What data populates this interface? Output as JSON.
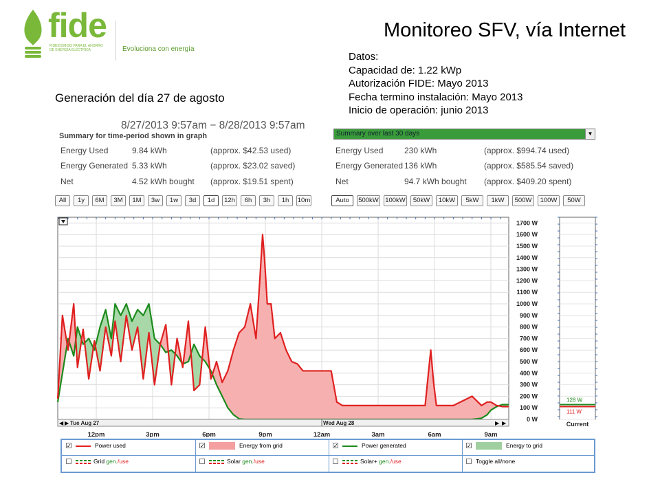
{
  "logo": {
    "word": "fide",
    "small_line1": "FIDEICOMISO PARA EL AHORRO",
    "small_line2": "DE ENERGÍA ELÉCTRICA",
    "tagline": "Evoluciona con energía"
  },
  "slide": {
    "title": "Monitoreo SFV, vía Internet",
    "caption": "Generación del día 27 de agosto",
    "datos": [
      "Datos:",
      "Capacidad de: 1.22 kWp",
      "Autorización FIDE:  Mayo 2013",
      "Fecha termino instalación: Mayo 2013",
      "Inicio de operación: junio 2013"
    ]
  },
  "screenshot": {
    "period": "8/27/2013 9:57am − 8/28/2013 9:57am",
    "summary_title": "Summary for time-period shown in graph",
    "summary_left": [
      {
        "label": "Energy Used",
        "value": "9.84 kWh",
        "approx": "(approx. $42.53 used)"
      },
      {
        "label": "Energy Generated",
        "value": "5.33 kWh",
        "approx": "(approx. $23.02 saved)"
      },
      {
        "label": "Net",
        "value": "4.52 kWh bought",
        "approx": "(approx. $19.51 spent)"
      }
    ],
    "dropdown": "Summary over last 30 days",
    "summary_right": [
      {
        "label": "Energy Used",
        "value": "230 kWh",
        "approx": "(approx. $994.74 used)"
      },
      {
        "label": "Energy Generated",
        "value": "136 kWh",
        "approx": "(approx. $585.54 saved)"
      },
      {
        "label": "Net",
        "value": "94.7 kWh bought",
        "approx": "(approx. $409.20 spent)"
      }
    ],
    "time_buttons": [
      "All",
      "1y",
      "6M",
      "3M",
      "1M",
      "3w",
      "1w",
      "3d",
      "1d",
      "12h",
      "6h",
      "3h",
      "1h",
      "10m"
    ],
    "scale_buttons": [
      "Auto",
      "500kW",
      "100kW",
      "50kW",
      "10kW",
      "5kW",
      "1kW",
      "500W",
      "100W",
      "50W"
    ],
    "selected_time": "1d",
    "selected_scale": "Auto",
    "current_label": "Current",
    "current_generated": "128 W",
    "current_used": "111 W",
    "legend": [
      {
        "label": "Power used",
        "checked": true,
        "kind": "line",
        "color": "#e02020"
      },
      {
        "label": "Energy from grid",
        "checked": true,
        "kind": "fill",
        "color": "#f4a0a0"
      },
      {
        "label": "Power generated",
        "checked": true,
        "kind": "line",
        "color": "#1c8a1c"
      },
      {
        "label": "Energy to grid",
        "checked": true,
        "kind": "fill",
        "color": "#a0d0a0"
      },
      {
        "label_a": "Grid ",
        "label_b": "gen.",
        "label_c": "/use",
        "checked": false,
        "kind": "dashed"
      },
      {
        "label_a": "Solar ",
        "label_b": "gen.",
        "label_c": "/use",
        "checked": false,
        "kind": "dashed"
      },
      {
        "label_a": "Solar+ ",
        "label_b": "gen.",
        "label_c": "/use",
        "checked": false,
        "kind": "dashed"
      },
      {
        "label": "Toggle all/none",
        "checked": false,
        "kind": "none"
      }
    ]
  },
  "colors": {
    "power_used": "#e02020",
    "power_generated": "#1c8a1c",
    "from_grid_fill": "#f7b0b0",
    "to_grid_fill": "#a8d8a8",
    "logo_green": "#7ab83a",
    "dropdown_green": "#3a9b3a",
    "legend_border": "#6a9ad0"
  },
  "chart_data": {
    "type": "line",
    "x_unit": "hour",
    "x_ticks": [
      "12pm",
      "3pm",
      "6pm",
      "9pm",
      "12am",
      "3am",
      "6am",
      "9am"
    ],
    "x_tick_hours": [
      12,
      15,
      18,
      21,
      24,
      27,
      30,
      33
    ],
    "x_range": [
      9.95,
      33.95
    ],
    "date_labels": [
      "Tue Aug 27",
      "Wed Aug 28"
    ],
    "y_ticks": [
      "0 W",
      "100 W",
      "200 W",
      "300 W",
      "400 W",
      "500 W",
      "600 W",
      "700 W",
      "800 W",
      "900 W",
      "1000 W",
      "1100 W",
      "1200 W",
      "1300 W",
      "1400 W",
      "1500 W",
      "1600 W",
      "1700 W"
    ],
    "ylim": [
      0,
      1750
    ],
    "grid": true,
    "series": [
      {
        "name": "Power used",
        "x": [
          9.95,
          10.2,
          10.5,
          10.8,
          11.0,
          11.3,
          11.6,
          11.9,
          12.2,
          12.5,
          12.8,
          13.0,
          13.3,
          13.6,
          13.9,
          14.2,
          14.5,
          14.8,
          15.1,
          15.4,
          15.7,
          16.0,
          16.3,
          16.6,
          16.9,
          17.2,
          17.5,
          17.8,
          18.1,
          18.4,
          18.7,
          19.0,
          19.3,
          19.6,
          19.9,
          20.2,
          20.5,
          20.7,
          20.85,
          20.95,
          21.1,
          21.3,
          21.5,
          21.8,
          22.1,
          22.4,
          22.7,
          23.0,
          23.3,
          23.6,
          23.9,
          24.2,
          24.5,
          24.8,
          25.1,
          25.5,
          26.0,
          26.5,
          27.0,
          27.5,
          28.0,
          28.5,
          29.0,
          29.5,
          29.8,
          29.95,
          30.1,
          30.5,
          31.0,
          31.5,
          32.0,
          32.5,
          32.8,
          33.0,
          33.3,
          33.6,
          33.95
        ],
        "values": [
          180,
          900,
          600,
          1000,
          450,
          780,
          350,
          680,
          420,
          800,
          550,
          850,
          500,
          900,
          600,
          800,
          350,
          750,
          300,
          650,
          820,
          300,
          700,
          450,
          850,
          250,
          300,
          800,
          350,
          500,
          320,
          420,
          600,
          750,
          800,
          1000,
          700,
          1200,
          1600,
          1400,
          1000,
          1000,
          700,
          750,
          600,
          500,
          480,
          420,
          420,
          420,
          420,
          420,
          420,
          150,
          120,
          120,
          120,
          120,
          120,
          120,
          120,
          120,
          120,
          120,
          600,
          320,
          120,
          120,
          120,
          160,
          200,
          120,
          150,
          150,
          120,
          111,
          111
        ]
      },
      {
        "name": "Power generated",
        "x": [
          9.95,
          10.2,
          10.5,
          10.8,
          11.0,
          11.3,
          11.6,
          11.9,
          12.2,
          12.5,
          12.8,
          13.0,
          13.3,
          13.6,
          13.9,
          14.2,
          14.5,
          14.8,
          15.1,
          15.4,
          15.7,
          16.0,
          16.3,
          16.6,
          16.9,
          17.2,
          17.5,
          17.8,
          18.1,
          18.4,
          18.7,
          19.0,
          19.3,
          19.6,
          19.9,
          20.2,
          20.5,
          21.0,
          22.0,
          24.0,
          26.0,
          28.0,
          30.0,
          31.0,
          31.5,
          32.0,
          32.5,
          32.8,
          33.0,
          33.3,
          33.6,
          33.95
        ],
        "values": [
          150,
          400,
          700,
          550,
          800,
          650,
          700,
          600,
          800,
          950,
          700,
          1000,
          900,
          1000,
          850,
          950,
          900,
          1000,
          700,
          650,
          580,
          600,
          550,
          480,
          500,
          650,
          550,
          500,
          420,
          300,
          200,
          100,
          40,
          5,
          0,
          0,
          0,
          0,
          0,
          0,
          0,
          0,
          0,
          0,
          0,
          0,
          10,
          40,
          80,
          110,
          128,
          128
        ]
      }
    ],
    "current": {
      "generated_w": 128,
      "used_w": 111
    }
  }
}
